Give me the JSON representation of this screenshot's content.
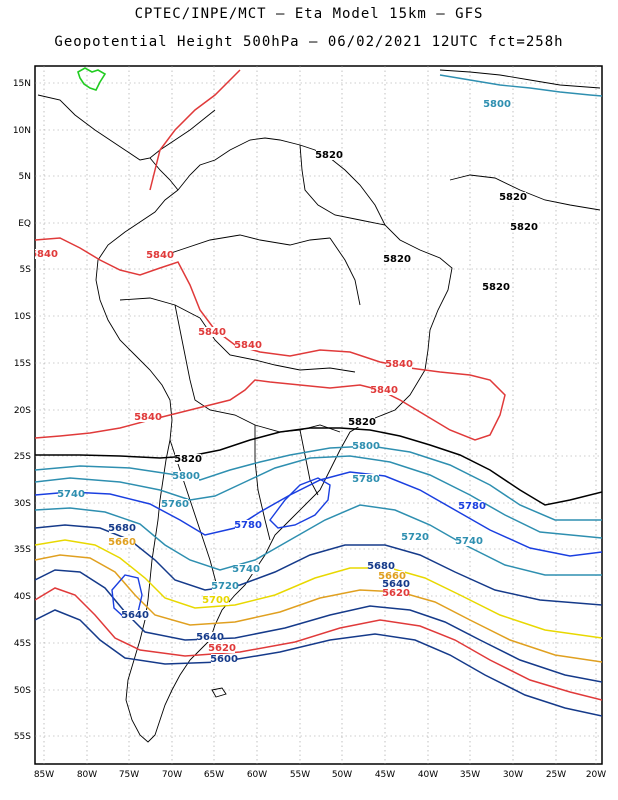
{
  "title_line1": "CPTEC/INPE/MCT –  Eta Model 15km – GFS",
  "title_line2": "Geopotential Height 500hPa – 06/02/2021 12UTC fct=258h",
  "lat_labels": [
    "15N",
    "10N",
    "5N",
    "EQ",
    "5S",
    "10S",
    "15S",
    "20S",
    "25S",
    "30S",
    "35S",
    "40S",
    "45S",
    "50S",
    "55S"
  ],
  "lon_labels": [
    "85W",
    "80W",
    "75W",
    "70W",
    "65W",
    "60W",
    "55W",
    "50W",
    "45W",
    "40W",
    "35W",
    "30W",
    "25W",
    "20W"
  ],
  "contour_labels": [
    {
      "text": "5800",
      "color": "#2e8fb0"
    },
    {
      "text": "5820",
      "color": "#000000"
    },
    {
      "text": "5820",
      "color": "#000000"
    },
    {
      "text": "5820",
      "color": "#000000"
    },
    {
      "text": "5820",
      "color": "#000000"
    },
    {
      "text": "5820",
      "color": "#000000"
    },
    {
      "text": "5840",
      "color": "#e03a3a"
    },
    {
      "text": "5840",
      "color": "#e03a3a"
    },
    {
      "text": "5840",
      "color": "#e03a3a"
    },
    {
      "text": "5840",
      "color": "#e03a3a"
    },
    {
      "text": "5840",
      "color": "#e03a3a"
    },
    {
      "text": "5840",
      "color": "#e03a3a"
    },
    {
      "text": "5840",
      "color": "#e03a3a"
    },
    {
      "text": "5820",
      "color": "#000000"
    },
    {
      "text": "5800",
      "color": "#2e8fb0"
    },
    {
      "text": "5820",
      "color": "#000000"
    },
    {
      "text": "5800",
      "color": "#2e8fb0"
    },
    {
      "text": "5740",
      "color": "#2e8fb0"
    },
    {
      "text": "5780",
      "color": "#2e8fb0"
    },
    {
      "text": "5760",
      "color": "#2e8fb0"
    },
    {
      "text": "5780",
      "color": "#1a3fe0"
    },
    {
      "text": "5780",
      "color": "#1a3fe0"
    },
    {
      "text": "5720",
      "color": "#2e8fb0"
    },
    {
      "text": "5740",
      "color": "#2e8fb0"
    },
    {
      "text": "5680",
      "color": "#153a8a"
    },
    {
      "text": "5660",
      "color": "#e0a020"
    },
    {
      "text": "5740",
      "color": "#2e8fb0"
    },
    {
      "text": "5720",
      "color": "#2e8fb0"
    },
    {
      "text": "5700",
      "color": "#e8d800"
    },
    {
      "text": "5680",
      "color": "#153a8a"
    },
    {
      "text": "5660",
      "color": "#e0a020"
    },
    {
      "text": "5640",
      "color": "#153a8a"
    },
    {
      "text": "5620",
      "color": "#e03a3a"
    },
    {
      "text": "5640",
      "color": "#153a8a"
    },
    {
      "text": "5640",
      "color": "#153a8a"
    },
    {
      "text": "5620",
      "color": "#e03a3a"
    },
    {
      "text": "5600",
      "color": "#153a8a"
    }
  ]
}
